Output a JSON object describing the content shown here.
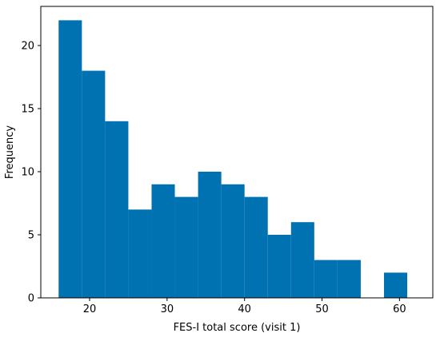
{
  "chart_data": {
    "type": "bar",
    "subtype": "histogram",
    "title": "",
    "xlabel": "FES-I total score (visit 1)",
    "ylabel": "Frequency",
    "xlim": [
      13.7,
      64.3
    ],
    "ylim": [
      0,
      23.1
    ],
    "grid": false,
    "bar_color": "#0072B2",
    "x_ticks": [
      20,
      30,
      40,
      50,
      60
    ],
    "y_ticks": [
      0,
      5,
      10,
      15,
      20
    ],
    "bins": [
      {
        "x0": 16,
        "x1": 19,
        "count": 22
      },
      {
        "x0": 19,
        "x1": 22,
        "count": 18
      },
      {
        "x0": 22,
        "x1": 25,
        "count": 14
      },
      {
        "x0": 25,
        "x1": 28,
        "count": 7
      },
      {
        "x0": 28,
        "x1": 31,
        "count": 9
      },
      {
        "x0": 31,
        "x1": 34,
        "count": 8
      },
      {
        "x0": 34,
        "x1": 37,
        "count": 10
      },
      {
        "x0": 37,
        "x1": 40,
        "count": 9
      },
      {
        "x0": 40,
        "x1": 43,
        "count": 8
      },
      {
        "x0": 43,
        "x1": 46,
        "count": 5
      },
      {
        "x0": 46,
        "x1": 49,
        "count": 6
      },
      {
        "x0": 49,
        "x1": 52,
        "count": 3
      },
      {
        "x0": 52,
        "x1": 55,
        "count": 3
      },
      {
        "x0": 55,
        "x1": 58,
        "count": 0
      },
      {
        "x0": 58,
        "x1": 61,
        "count": 2
      }
    ]
  }
}
